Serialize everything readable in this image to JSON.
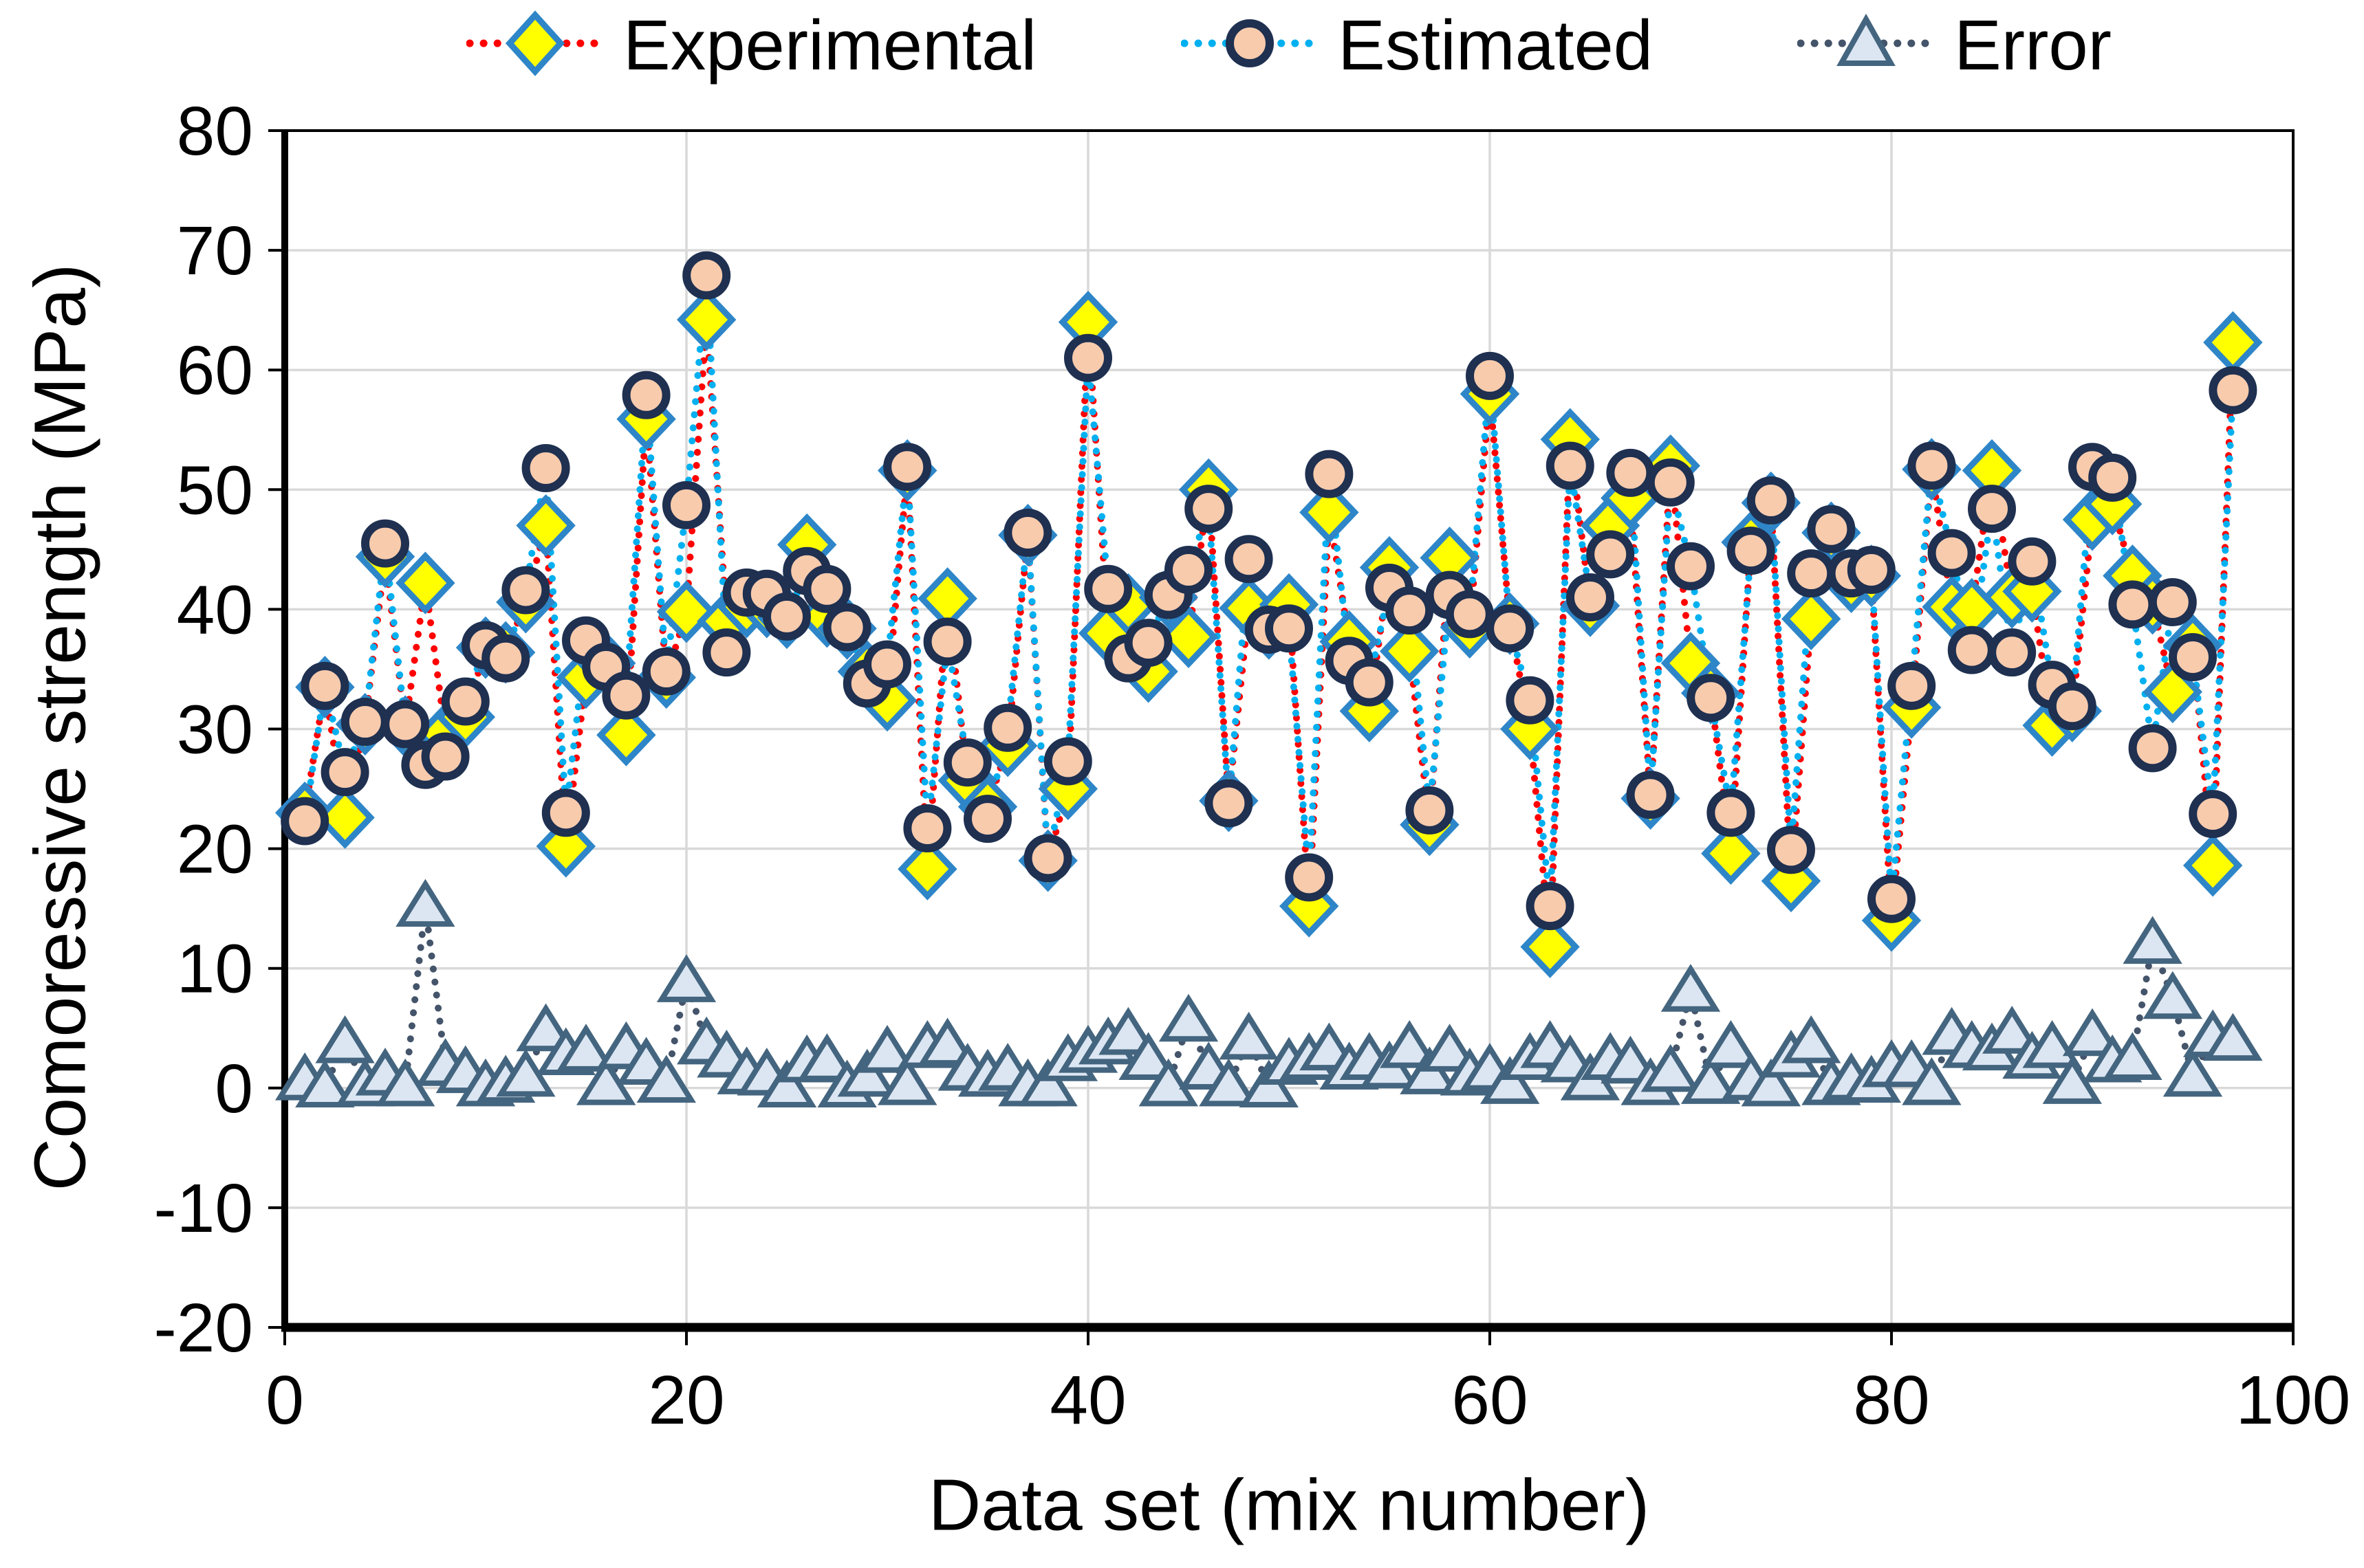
{
  "legend": {
    "items": [
      {
        "label": "Experimental",
        "marker": "diamond"
      },
      {
        "label": "Estimated",
        "marker": "circle"
      },
      {
        "label": "Error",
        "marker": "triangle"
      }
    ]
  },
  "axes": {
    "y_title": "Comoressive strength (MPa)",
    "x_title": "Data set (mix number)",
    "y_ticks": [
      "80",
      "70",
      "60",
      "50",
      "40",
      "30",
      "20",
      "10",
      "0",
      "-10",
      "-20"
    ],
    "x_ticks": [
      "0",
      "20",
      "40",
      "60",
      "80",
      "100"
    ]
  },
  "colors": {
    "experimental_line": "#FF0000",
    "experimental_fill": "#FFFF00",
    "experimental_stroke": "#2E86C8",
    "estimated_line": "#00B0F0",
    "estimated_fill": "#F8CBAD",
    "estimated_stroke": "#1F3050",
    "error_line": "#44546A",
    "error_fill": "#DCE6F2",
    "error_stroke": "#44657F",
    "gridline": "#D9D9D9",
    "axis": "#000000"
  },
  "chart_data": {
    "type": "line",
    "title": "",
    "xlabel": "Data set (mix number)",
    "ylabel": "Comoressive strength (MPa)",
    "xlim": [
      0,
      100
    ],
    "ylim": [
      -20,
      80
    ],
    "x_tick_step": 20,
    "y_tick_step": 10,
    "grid": true,
    "legend_position": "top",
    "x": [
      1,
      2,
      3,
      4,
      5,
      6,
      7,
      8,
      9,
      10,
      11,
      12,
      13,
      14,
      15,
      16,
      17,
      18,
      19,
      20,
      21,
      22,
      23,
      24,
      25,
      26,
      27,
      28,
      29,
      30,
      31,
      32,
      33,
      34,
      35,
      36,
      37,
      38,
      39,
      40,
      41,
      42,
      43,
      44,
      45,
      46,
      47,
      48,
      49,
      50,
      51,
      52,
      53,
      54,
      55,
      56,
      57,
      58,
      59,
      60,
      61,
      62,
      63,
      64,
      65,
      66,
      67,
      68,
      69,
      70,
      71,
      72,
      73,
      74,
      75,
      76,
      77,
      78,
      79,
      80,
      81,
      82,
      83,
      84,
      85,
      86,
      87,
      88,
      89,
      90,
      91,
      92,
      93,
      94,
      95,
      96,
      97
    ],
    "series": [
      {
        "name": "Experimental",
        "marker": "diamond",
        "values": [
          23.0,
          33.5,
          22.6,
          30.4,
          44.4,
          30.2,
          42.2,
          29.6,
          31.0,
          36.8,
          36.4,
          40.6,
          47.0,
          20.2,
          34.3,
          35.5,
          29.5,
          55.9,
          34.3,
          39.8,
          64.2,
          39.0,
          40.2,
          40.2,
          39.3,
          45.4,
          39.4,
          38.4,
          34.8,
          32.4,
          51.6,
          18.3,
          40.9,
          25.7,
          23.5,
          28.6,
          46.2,
          19.0,
          25.0,
          64.0,
          38.0,
          40.4,
          34.8,
          41.0,
          37.7,
          50.0,
          24.0,
          40.1,
          38.4,
          40.4,
          15.2,
          48.1,
          37.3,
          31.5,
          43.5,
          36.5,
          22.0,
          44.3,
          38.5,
          58.0,
          38.8,
          30.0,
          11.8,
          54.2,
          40.3,
          47.0,
          49.3,
          24.2,
          52.0,
          35.5,
          33.0,
          19.6,
          45.6,
          48.9,
          17.3,
          39.2,
          46.4,
          42.3,
          42.8,
          14.0,
          31.8,
          51.7,
          40.2,
          40.0,
          51.6,
          41.0,
          41.5,
          30.3,
          31.5,
          47.5,
          48.8,
          42.8,
          40.5,
          33.1,
          37.0,
          18.6,
          62.3
        ]
      },
      {
        "name": "Estimated",
        "marker": "circle",
        "values": [
          22.3,
          33.6,
          26.4,
          30.6,
          45.5,
          30.4,
          27.0,
          27.7,
          32.3,
          37.0,
          35.9,
          41.6,
          51.8,
          23.0,
          37.4,
          35.2,
          32.8,
          57.9,
          34.8,
          48.7,
          67.9,
          36.4,
          41.4,
          41.3,
          39.4,
          43.2,
          41.7,
          38.5,
          33.8,
          35.4,
          51.9,
          21.7,
          37.3,
          27.2,
          22.5,
          30.1,
          46.4,
          19.2,
          27.3,
          61.0,
          41.7,
          35.9,
          37.2,
          41.2,
          43.3,
          48.4,
          23.8,
          44.2,
          38.3,
          38.4,
          17.6,
          51.3,
          35.7,
          33.9,
          41.8,
          39.9,
          23.2,
          41.2,
          39.6,
          59.5,
          38.4,
          32.4,
          15.2,
          52.0,
          41.0,
          44.6,
          51.4,
          24.5,
          50.6,
          43.6,
          32.6,
          23.0,
          44.9,
          49.1,
          19.9,
          43.0,
          46.7,
          43.0,
          43.3,
          15.8,
          33.6,
          52.0,
          44.7,
          36.6,
          48.4,
          36.4,
          44.0,
          33.7,
          31.9,
          51.9,
          51.0,
          40.4,
          28.4,
          40.6,
          36.0,
          22.9,
          58.3
        ]
      },
      {
        "name": "Error",
        "marker": "triangle",
        "values": [
          0.7,
          0.1,
          3.8,
          0.2,
          1.1,
          0.2,
          15.2,
          1.9,
          1.3,
          0.2,
          0.5,
          1.0,
          4.8,
          2.8,
          3.1,
          0.3,
          3.3,
          2.0,
          0.5,
          8.9,
          3.7,
          2.6,
          1.2,
          1.1,
          0.1,
          2.2,
          2.3,
          0.1,
          1.0,
          3.0,
          0.3,
          3.4,
          3.6,
          1.5,
          1.0,
          1.5,
          0.2,
          0.2,
          2.3,
          3.0,
          3.7,
          4.5,
          2.4,
          0.2,
          5.6,
          1.6,
          0.2,
          4.1,
          0.1,
          2.0,
          2.4,
          3.2,
          1.6,
          2.4,
          1.7,
          3.4,
          1.2,
          3.1,
          1.1,
          1.5,
          0.4,
          2.4,
          3.4,
          2.2,
          0.7,
          2.4,
          2.1,
          0.3,
          1.4,
          8.1,
          0.4,
          3.4,
          0.7,
          0.2,
          2.6,
          3.8,
          0.3,
          0.7,
          0.5,
          1.8,
          1.8,
          0.3,
          4.5,
          3.4,
          3.2,
          4.6,
          2.5,
          3.4,
          0.4,
          4.4,
          2.2,
          2.4,
          12.1,
          7.5,
          1.0,
          4.3,
          4.0
        ]
      }
    ]
  }
}
